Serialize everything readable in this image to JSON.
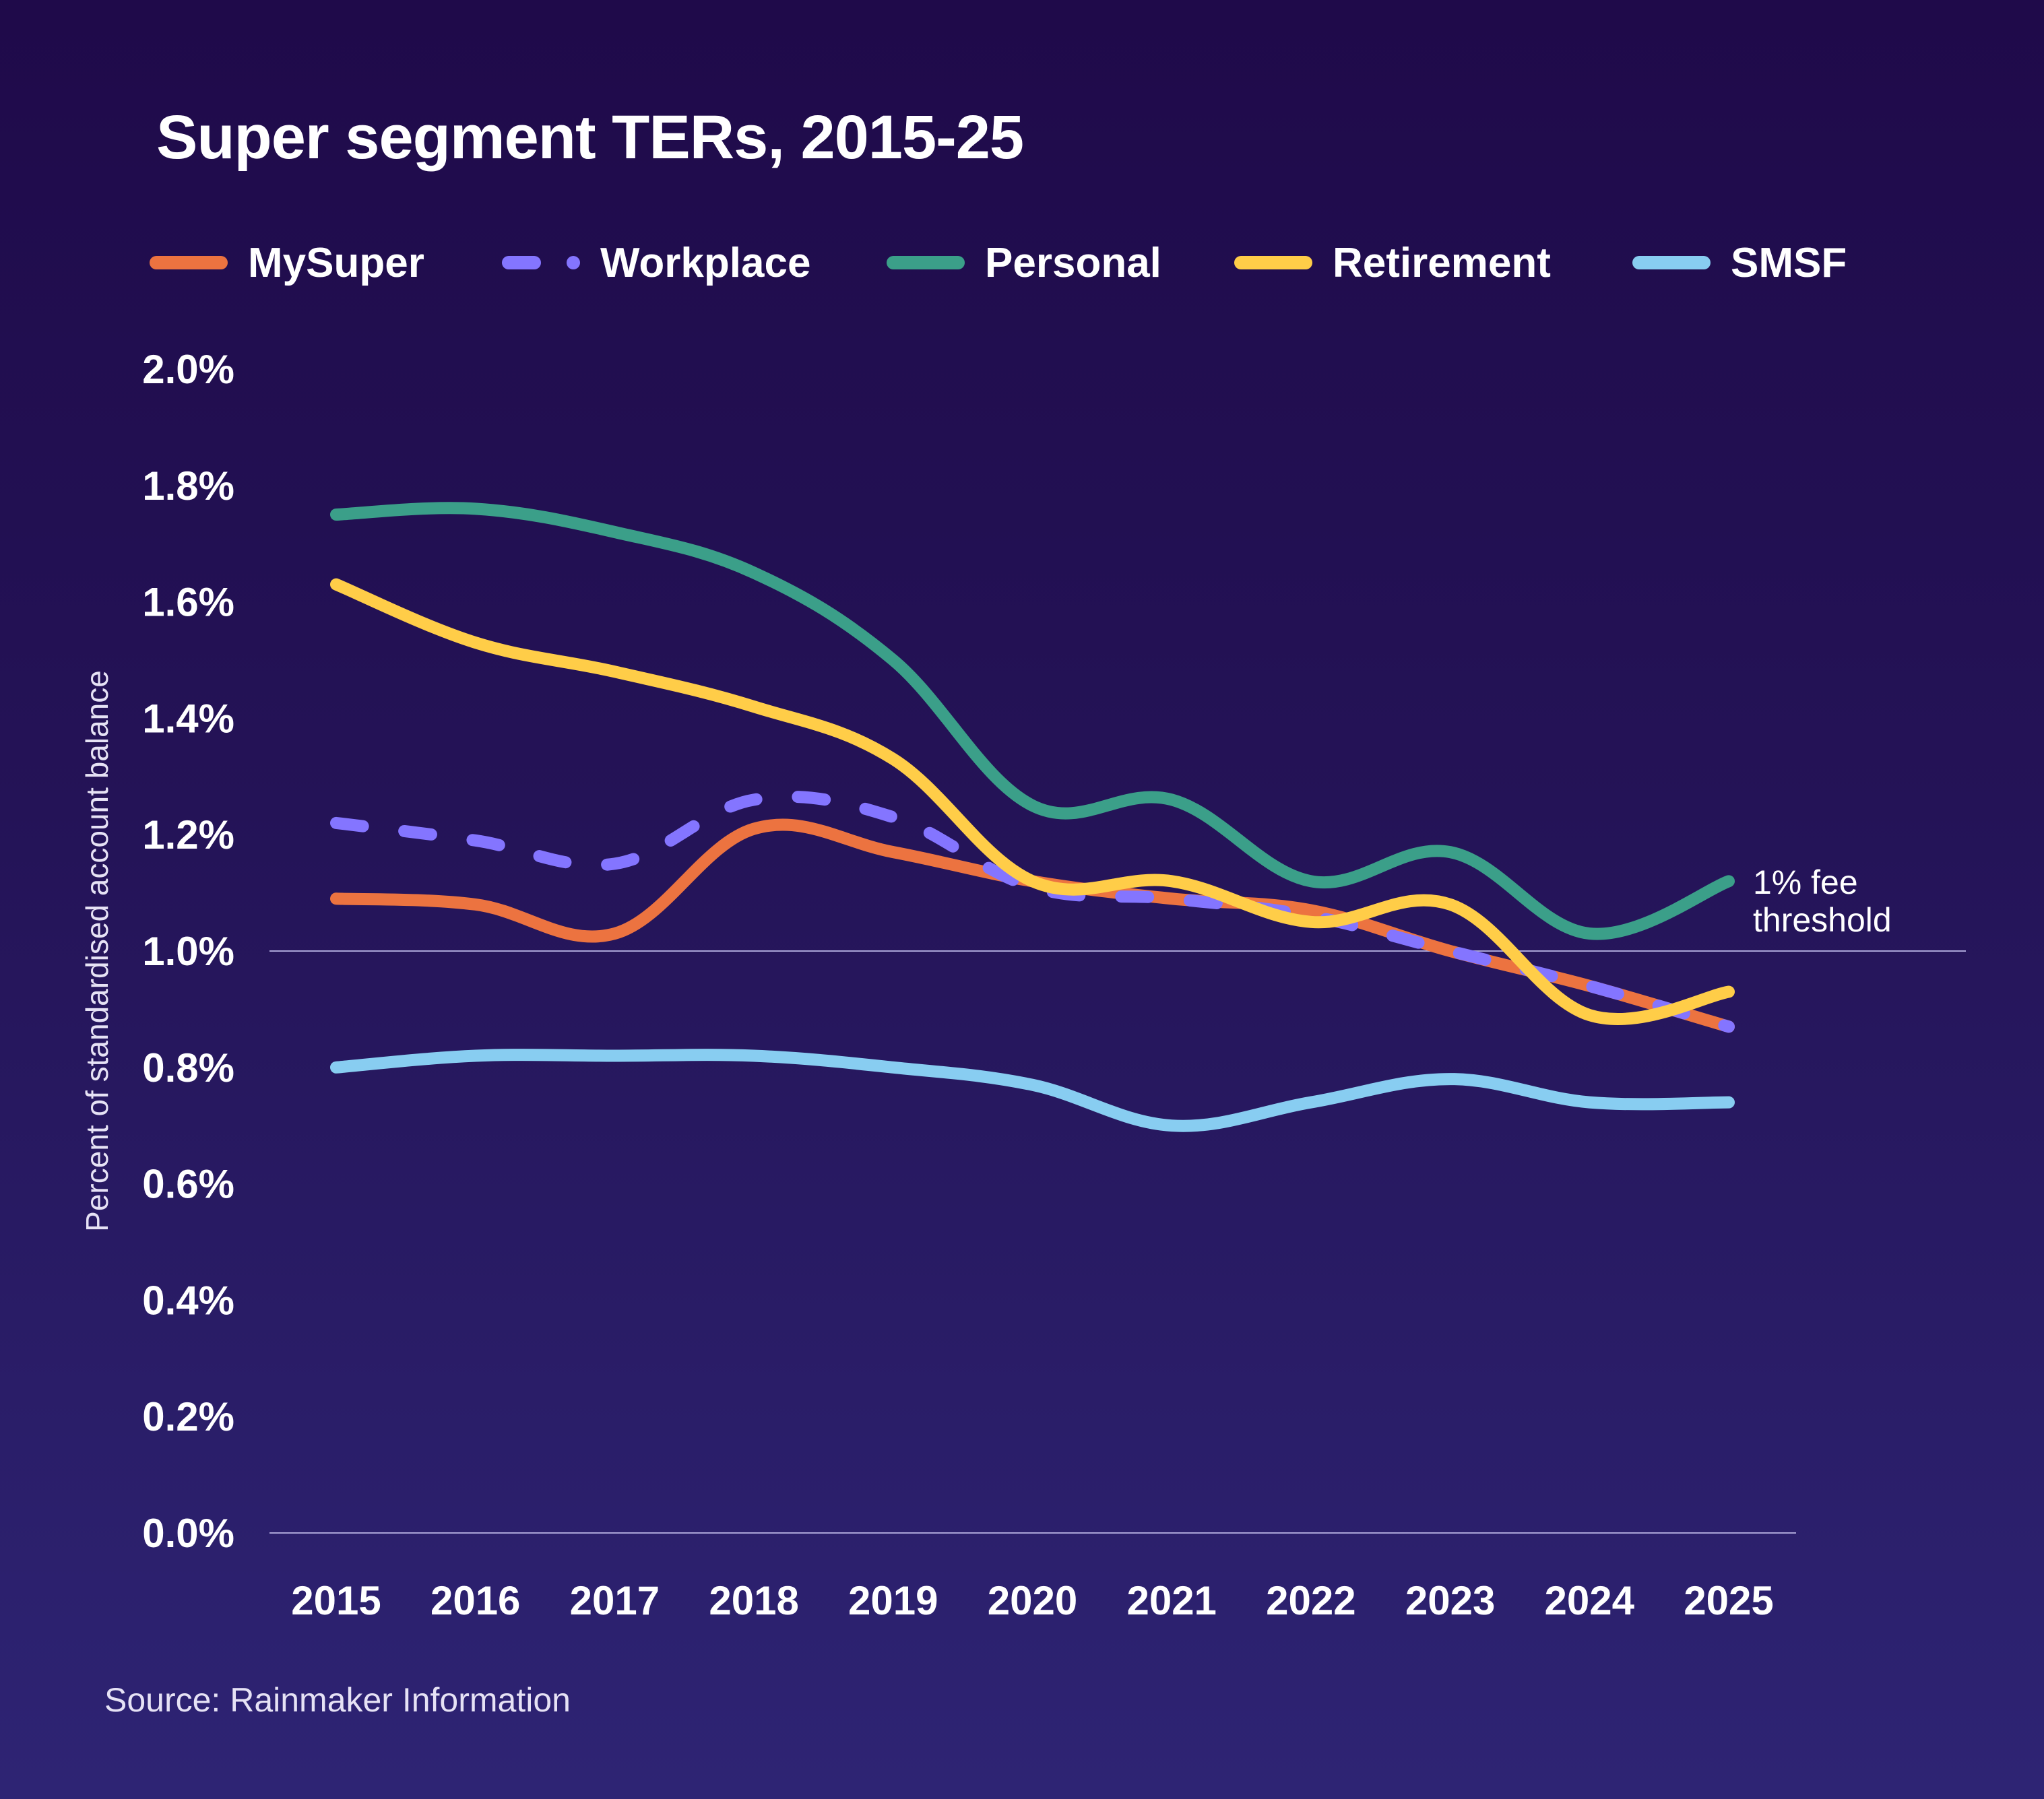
{
  "chart_data": {
    "type": "line",
    "title": "Super segment TERs, 2015-25",
    "xlabel": "",
    "ylabel": "Percent of standardised account balance",
    "x": [
      "2015",
      "2016",
      "2017",
      "2018",
      "2019",
      "2020",
      "2021",
      "2022",
      "2023",
      "2024",
      "2025"
    ],
    "ylim": [
      0,
      2.0
    ],
    "yticks": [
      0.0,
      0.2,
      0.4,
      0.6,
      0.8,
      1.0,
      1.2,
      1.4,
      1.6,
      1.8,
      2.0
    ],
    "ytick_labels": [
      "0.0%",
      "0.2%",
      "0.4%",
      "0.6%",
      "0.8%",
      "1.0%",
      "1.2%",
      "1.4%",
      "1.6%",
      "1.8%",
      "2.0%"
    ],
    "grid": false,
    "legend_position": "top",
    "series": [
      {
        "name": "MySuper",
        "color": "#ec7340",
        "style": "solid",
        "values": [
          1.09,
          1.08,
          1.03,
          1.21,
          1.17,
          1.12,
          1.09,
          1.07,
          1.0,
          0.94,
          0.87
        ]
      },
      {
        "name": "Workplace",
        "color": "#8475ff",
        "style": "dashed",
        "values": [
          1.22,
          1.19,
          1.15,
          1.26,
          1.23,
          1.11,
          1.09,
          1.06,
          1.0,
          0.94,
          0.87
        ]
      },
      {
        "name": "Personal",
        "color": "#3b9f89",
        "style": "solid",
        "values": [
          1.75,
          1.76,
          1.72,
          1.65,
          1.5,
          1.25,
          1.26,
          1.12,
          1.17,
          1.03,
          1.12
        ]
      },
      {
        "name": "Retirement",
        "color": "#ffcd48",
        "style": "solid",
        "values": [
          1.63,
          1.53,
          1.48,
          1.42,
          1.33,
          1.12,
          1.12,
          1.05,
          1.08,
          0.89,
          0.93
        ]
      },
      {
        "name": "SMSF",
        "color": "#88cdf1",
        "style": "solid",
        "values": [
          0.8,
          0.82,
          0.82,
          0.82,
          0.8,
          0.77,
          0.7,
          0.74,
          0.78,
          0.74,
          0.74
        ]
      }
    ],
    "reference_line": {
      "value": 1.0,
      "label_line1": "1% fee",
      "label_line2": "threshold"
    },
    "source": "Source: Rainmaker Information"
  }
}
